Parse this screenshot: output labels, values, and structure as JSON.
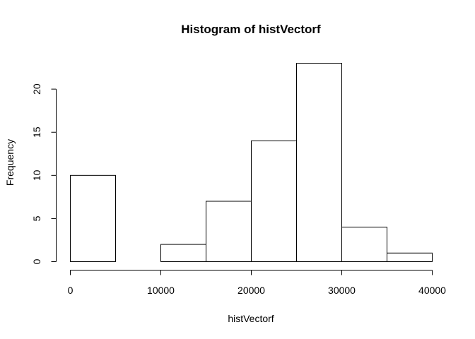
{
  "chart_data": {
    "type": "bar",
    "title": "Histogram of histVectorf",
    "xlabel": "histVectorf",
    "ylabel": "Frequency",
    "bins": [
      {
        "start": 0,
        "end": 5000,
        "count": 10
      },
      {
        "start": 5000,
        "end": 10000,
        "count": 0
      },
      {
        "start": 10000,
        "end": 15000,
        "count": 2
      },
      {
        "start": 15000,
        "end": 20000,
        "count": 7
      },
      {
        "start": 20000,
        "end": 25000,
        "count": 14
      },
      {
        "start": 25000,
        "end": 30000,
        "count": 23
      },
      {
        "start": 30000,
        "end": 35000,
        "count": 4
      },
      {
        "start": 35000,
        "end": 40000,
        "count": 1
      }
    ],
    "xlim": [
      0,
      40000
    ],
    "ylim": [
      0,
      23
    ],
    "xticks": [
      0,
      10000,
      20000,
      30000,
      40000
    ],
    "yticks": [
      0,
      5,
      10,
      15,
      20
    ],
    "grid": false,
    "legend": "none"
  }
}
